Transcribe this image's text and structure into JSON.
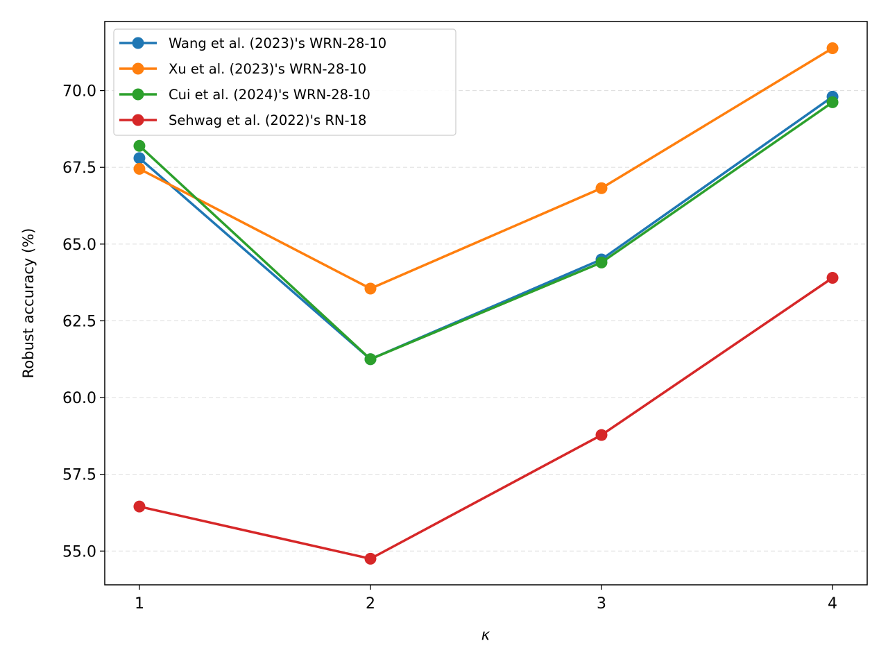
{
  "chart_data": {
    "type": "line",
    "title": "",
    "xlabel": "κ",
    "ylabel": "Robust accuracy (%)",
    "x": [
      1,
      2,
      3,
      4
    ],
    "x_ticks": [
      "1",
      "2",
      "3",
      "4"
    ],
    "xlim": [
      0.85,
      4.15
    ],
    "ylim": [
      53.9,
      72.25
    ],
    "y_ticks": [
      "55.0",
      "57.5",
      "60.0",
      "62.5",
      "65.0",
      "67.5",
      "70.0"
    ],
    "grid": "horizontal dashed",
    "legend_position": "upper-left",
    "series": [
      {
        "name": "Wang et al. (2023)'s WRN-28-10",
        "color": "#1f77b4",
        "values": [
          67.8,
          61.25,
          64.5,
          69.8
        ]
      },
      {
        "name": "Xu et al. (2023)'s WRN-28-10",
        "color": "#ff7f0e",
        "values": [
          67.45,
          63.55,
          66.82,
          71.38
        ]
      },
      {
        "name": "Cui et al. (2024)'s WRN-28-10",
        "color": "#2ca02c",
        "values": [
          68.2,
          61.25,
          64.4,
          69.62
        ]
      },
      {
        "name": "Sehwag et al. (2022)'s RN-18",
        "color": "#d62728",
        "values": [
          56.45,
          54.75,
          58.78,
          63.9
        ]
      }
    ]
  }
}
